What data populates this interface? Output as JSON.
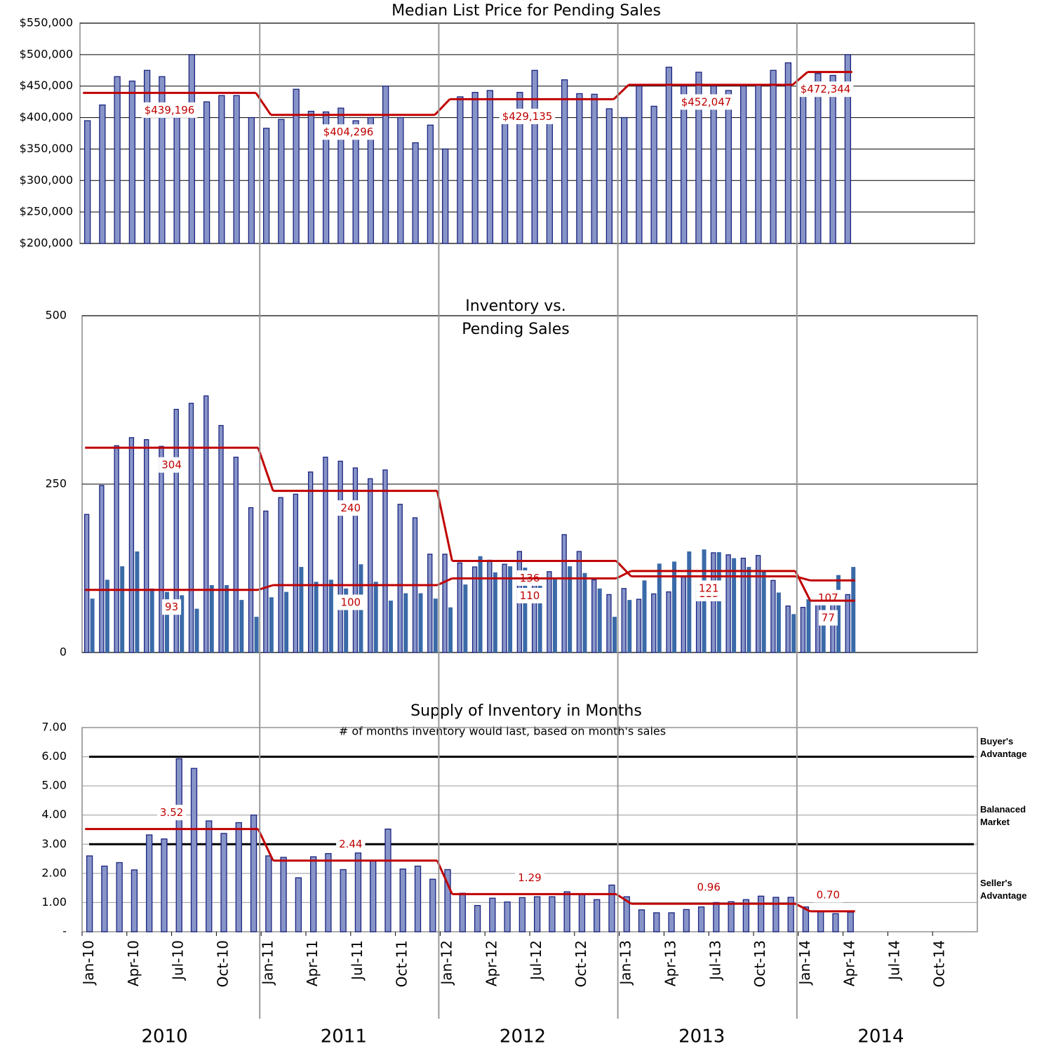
{
  "chart_data": [
    {
      "type": "bar",
      "title": "Median List Price for Pending Sales",
      "ylim": [
        200000,
        550000
      ],
      "yticks": [
        {
          "value": 200000,
          "label": "$200,000"
        },
        {
          "value": 250000,
          "label": "$250,000"
        },
        {
          "value": 300000,
          "label": "$300,000"
        },
        {
          "value": 350000,
          "label": "$350,000"
        },
        {
          "value": 400000,
          "label": "$400,000"
        },
        {
          "value": 450000,
          "label": "$450,000"
        },
        {
          "value": 500000,
          "label": "$500,000"
        },
        {
          "value": 550000,
          "label": "$550,000"
        }
      ],
      "grid": true,
      "series": [
        {
          "color": "#8794c8",
          "values": [
            395000,
            420000,
            465000,
            458000,
            475000,
            465000,
            400000,
            500000,
            425000,
            435000,
            435000,
            400000,
            383000,
            397000,
            445000,
            410000,
            409000,
            415000,
            395000,
            400000,
            450000,
            400000,
            360000,
            388000,
            350000,
            433000,
            440000,
            443000,
            400000,
            440000,
            475000,
            400000,
            460000,
            438000,
            437000,
            414000,
            400000,
            450000,
            418000,
            480000,
            450000,
            472000,
            450000,
            443000,
            450000,
            452000,
            475000,
            487000,
            450000,
            470000,
            467000,
            500000,
            null,
            null,
            null,
            null,
            null,
            null,
            null,
            null
          ],
          "averages": [
            439196,
            404296,
            429135,
            452047,
            472344
          ],
          "average_labels": [
            "$439,196",
            "$404,296",
            "$429,135",
            "$452,047",
            "$472,344"
          ]
        }
      ]
    },
    {
      "type": "bar",
      "title": [
        "Inventory vs.",
        "Pending Sales"
      ],
      "ylim": [
        0,
        500
      ],
      "yticks": [
        0,
        250,
        500
      ],
      "grid": true,
      "series": [
        {
          "color": "#8794c8",
          "values": [
            205,
            248,
            307,
            319,
            316,
            306,
            361,
            370,
            381,
            337,
            290,
            215,
            210,
            230,
            235,
            268,
            290,
            284,
            274,
            258,
            271,
            220,
            200,
            146,
            146,
            133,
            127,
            137,
            131,
            150,
            120,
            120,
            175,
            150,
            108,
            86,
            95,
            79,
            87,
            90,
            112,
            103,
            148,
            145,
            140,
            144,
            107,
            69,
            67,
            78,
            75,
            86,
            null,
            null,
            null,
            null,
            null,
            null,
            null,
            null
          ],
          "averages": [
            304,
            240,
            136,
            113,
            107
          ]
        },
        {
          "color": "#3a6aa8",
          "values": [
            80,
            108,
            128,
            150,
            95,
            90,
            85,
            65,
            100,
            100,
            78,
            53,
            82,
            90,
            127,
            105,
            108,
            95,
            131,
            105,
            77,
            88,
            88,
            80,
            67,
            101,
            143,
            119,
            128,
            126,
            120,
            110,
            128,
            118,
            95,
            53,
            78,
            107,
            132,
            135,
            150,
            153,
            149,
            140,
            127,
            122,
            89,
            57,
            79,
            78,
            115,
            127,
            null,
            null,
            null,
            null,
            null,
            null,
            null,
            null
          ],
          "averages": [
            93,
            100,
            110,
            121,
            77
          ]
        }
      ]
    },
    {
      "type": "bar",
      "title": "Supply of Inventory in Months",
      "subtitle": "# of months inventory would last, based on month's sales",
      "ylim": [
        0,
        7
      ],
      "yticks": [
        {
          "value": 0,
          "label": "-"
        },
        {
          "value": 1,
          "label": "1.00"
        },
        {
          "value": 2,
          "label": "2.00"
        },
        {
          "value": 3,
          "label": "3.00"
        },
        {
          "value": 4,
          "label": "4.00"
        },
        {
          "value": 5,
          "label": "5.00"
        },
        {
          "value": 6,
          "label": "6.00"
        },
        {
          "value": 7,
          "label": "7.00"
        }
      ],
      "grid": true,
      "reference_lines": [
        6,
        3
      ],
      "zone_labels": [
        [
          "Buyer's",
          "Advantage"
        ],
        [
          "Balanaced",
          "Market"
        ],
        [
          "Seller's",
          "Advantage"
        ]
      ],
      "categories": [
        "Jan-10",
        null,
        null,
        "Apr-10",
        null,
        null,
        "Jul-10",
        null,
        null,
        "Oct-10",
        null,
        null,
        "Jan-11",
        null,
        null,
        "Apr-11",
        null,
        null,
        "Jul-11",
        null,
        null,
        "Oct-11",
        null,
        null,
        "Jan-12",
        null,
        null,
        "Apr-12",
        null,
        null,
        "Jul-12",
        null,
        null,
        "Oct-12",
        null,
        null,
        "Jan-13",
        null,
        null,
        "Apr-13",
        null,
        null,
        "Jul-13",
        null,
        null,
        "Oct-13",
        null,
        null,
        "Jan-14",
        null,
        null,
        "Apr-14",
        null,
        null,
        "Jul-14",
        null,
        null,
        "Oct-14",
        null,
        null
      ],
      "years": [
        "2010",
        "2011",
        "2012",
        "2013",
        "2014"
      ],
      "series": [
        {
          "color": "#8794c8",
          "values": [
            2.6,
            2.25,
            2.37,
            2.12,
            3.32,
            3.18,
            5.93,
            5.6,
            3.8,
            3.37,
            3.74,
            4.0,
            2.6,
            2.55,
            1.85,
            2.57,
            2.68,
            2.13,
            2.7,
            2.45,
            3.52,
            2.15,
            2.25,
            1.8,
            2.13,
            1.32,
            0.9,
            1.15,
            1.02,
            1.17,
            1.2,
            1.2,
            1.37,
            1.3,
            1.1,
            1.6,
            1.2,
            0.75,
            0.65,
            0.65,
            0.76,
            0.85,
            1.0,
            1.03,
            1.1,
            1.22,
            1.18,
            1.18,
            0.85,
            0.7,
            0.62,
            0.67,
            null,
            null,
            null,
            null,
            null,
            null,
            null,
            null
          ],
          "averages": [
            3.52,
            2.44,
            1.29,
            0.96,
            0.7
          ],
          "average_labels": [
            "3.52",
            "2.44",
            "1.29",
            "0.96",
            "0.70"
          ]
        }
      ]
    }
  ]
}
